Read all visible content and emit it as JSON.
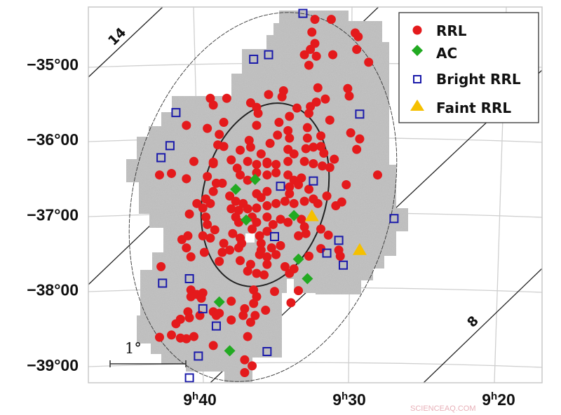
{
  "chart_data": {
    "type": "scatter",
    "title": "",
    "xlabel": "",
    "ylabel": "",
    "x_axis": {
      "quantity": "Right Ascension",
      "direction": "decreasing to the right",
      "ticks": [
        {
          "value": "9h40m",
          "label": "9h40"
        },
        {
          "value": "9h30m",
          "label": "9h30"
        },
        {
          "value": "9h20m",
          "label": "9h20"
        }
      ]
    },
    "y_axis": {
      "quantity": "Declination",
      "ticks": [
        {
          "value": -35,
          "label": "−35°00"
        },
        {
          "value": -36,
          "label": "−36°00"
        },
        {
          "value": -37,
          "label": "−37°00"
        },
        {
          "value": -38,
          "label": "−38°00"
        },
        {
          "value": -39,
          "label": "−39°00"
        }
      ]
    },
    "grid": true,
    "legend_position": "top-right",
    "colors": {
      "RRL": "#e41a1c",
      "AC": "#22aa22",
      "Bright RRL": "#1a1aaa",
      "Faint RRL": "#f5c000",
      "footprint": "#b9b9b9"
    },
    "contour_labels": [
      "14",
      "8"
    ],
    "scale_bar_label": "1°",
    "series": [
      {
        "name": "RRL",
        "marker": "circle",
        "points": [
          [
            "9h32.3m",
            -34.4
          ],
          [
            "9h31.2m",
            -34.4
          ],
          [
            "9h32.5m",
            -34.57
          ],
          [
            "9h29.6m",
            -34.58
          ],
          [
            "9h29.4m",
            -34.63
          ],
          [
            "9h32.3m",
            -34.72
          ],
          [
            "9h32.6m",
            -34.8
          ],
          [
            "9h33.0m",
            -34.87
          ],
          [
            "9h32.2m",
            -34.89
          ],
          [
            "9h32.7m",
            -35.01
          ],
          [
            "9h31.1m",
            -34.87
          ],
          [
            "9h29.5m",
            -34.8
          ],
          [
            "9h28.7m",
            -34.97
          ],
          [
            "9h32.1m",
            -35.31
          ],
          [
            "9h30.1m",
            -35.32
          ],
          [
            "9h30.0m",
            -35.42
          ],
          [
            "9h35.4m",
            -35.4
          ],
          [
            "9h34.4m",
            -35.35
          ],
          [
            "9h34.5m",
            -35.43
          ],
          [
            "9h39.3m",
            -35.45
          ],
          [
            "9h38.2m",
            -35.45
          ],
          [
            "9h39.1m",
            -35.54
          ],
          [
            "9h36.6m",
            -35.51
          ],
          [
            "9h36.2m",
            -35.57
          ],
          [
            "9h36.1m",
            -35.65
          ],
          [
            "9h33.5m",
            -35.58
          ],
          [
            "9h32.6m",
            -35.56
          ],
          [
            "9h32.2m",
            -35.5
          ],
          [
            "9h31.6m",
            -35.46
          ],
          [
            "9h32.7m",
            -35.65
          ],
          [
            "9h34.0m",
            -35.69
          ],
          [
            "9h34.7m",
            -35.77
          ],
          [
            "9h36.2m",
            -35.81
          ],
          [
            "9h31.3m",
            -35.74
          ],
          [
            "9h40.9m",
            -35.81
          ],
          [
            "9h39.5m",
            -35.85
          ],
          [
            "9h38.4m",
            -35.77
          ],
          [
            "9h38.7m",
            -35.93
          ],
          [
            "9h38.8m",
            -36.07
          ],
          [
            "9h38.4m",
            -36.09
          ],
          [
            "9h37.3m",
            -36.14
          ],
          [
            "9h36.7m",
            -36.01
          ],
          [
            "9h36.6m",
            -36.1
          ],
          [
            "9h35.3m",
            -36.05
          ],
          [
            "9h35.9m",
            -36.19
          ],
          [
            "9h34.8m",
            -35.94
          ],
          [
            "9h34.1m",
            -35.88
          ],
          [
            "9h34.0m",
            -35.98
          ],
          [
            "9h32.8m",
            -35.84
          ],
          [
            "9h31.9m",
            -35.95
          ],
          [
            "9h32.8m",
            -35.98
          ],
          [
            "9h29.9m",
            -35.91
          ],
          [
            "9h29.3m",
            -35.99
          ],
          [
            "9h29.5m",
            -36.13
          ],
          [
            "9h32.9m",
            -36.12
          ],
          [
            "9h32.4m",
            -36.1
          ],
          [
            "9h31.9m",
            -36.09
          ],
          [
            "9h31.7m",
            -36.18
          ],
          [
            "9h34.1m",
            -36.13
          ],
          [
            "9h33.7m",
            -36.19
          ],
          [
            "9h40.4m",
            -36.29
          ],
          [
            "9h39.1m",
            -36.3
          ],
          [
            "9h37.9m",
            -36.27
          ],
          [
            "9h36.8m",
            -36.29
          ],
          [
            "9h35.5m",
            -36.3
          ],
          [
            "9h34.1m",
            -36.29
          ],
          [
            "9h33.0m",
            -36.29
          ],
          [
            "9h31.0m",
            -36.26
          ],
          [
            "9h39.1m",
            -36.32
          ],
          [
            "9h42.7m",
            -36.47
          ],
          [
            "9h41.9m",
            -36.45
          ],
          [
            "9h40.9m",
            -36.52
          ],
          [
            "9h39.5m",
            -36.49
          ],
          [
            "9h37.5m",
            -36.38
          ],
          [
            "9h36.2m",
            -36.33
          ],
          [
            "9h35.5m",
            -36.32
          ],
          [
            "9h34.9m",
            -36.33
          ],
          [
            "9h32.4m",
            -36.32
          ],
          [
            "9h31.8m",
            -36.35
          ],
          [
            "9h31.3m",
            -36.37
          ],
          [
            "9h28.1m",
            -36.47
          ],
          [
            "9h37.3m",
            -36.47
          ],
          [
            "9h36.8m",
            -36.54
          ],
          [
            "9h36.2m",
            -36.44
          ],
          [
            "9h35.5m",
            -36.47
          ],
          [
            "9h34.9m",
            -36.44
          ],
          [
            "9h34.1m",
            -36.47
          ],
          [
            "9h33.7m",
            -36.54
          ],
          [
            "9h33.2m",
            -36.51
          ],
          [
            "9h33.4m",
            -36.6
          ],
          [
            "9h34.0m",
            -36.63
          ],
          [
            "9h32.7m",
            -36.66
          ],
          [
            "9h38.9m",
            -36.58
          ],
          [
            "9h38.5m",
            -36.58
          ],
          [
            "9h39.1m",
            -36.69
          ],
          [
            "9h39.6m",
            -36.79
          ],
          [
            "9h40.2m",
            -36.85
          ],
          [
            "9h39.8m",
            -36.91
          ],
          [
            "9h39.3m",
            -36.85
          ],
          [
            "9h38.0m",
            -36.75
          ],
          [
            "9h37.6m",
            -36.82
          ],
          [
            "9h37.1m",
            -36.85
          ],
          [
            "9h37.9m",
            -36.92
          ],
          [
            "9h37.4m",
            -36.94
          ],
          [
            "9h36.8m",
            -36.92
          ],
          [
            "9h36.2m",
            -36.91
          ],
          [
            "9h35.5m",
            -36.88
          ],
          [
            "9h34.9m",
            -36.85
          ],
          [
            "9h34.3m",
            -36.82
          ],
          [
            "9h33.7m",
            -36.85
          ],
          [
            "9h33.0m",
            -36.82
          ],
          [
            "9h32.4m",
            -36.79
          ],
          [
            "9h32.1m",
            -36.85
          ],
          [
            "9h31.5m",
            -36.75
          ],
          [
            "9h30.9m",
            -36.88
          ],
          [
            "9h30.5m",
            -36.83
          ],
          [
            "9h30.2m",
            -36.6
          ],
          [
            "9h36.2m",
            -36.72
          ],
          [
            "9h35.5m",
            -36.69
          ],
          [
            "9h35.9m",
            -36.77
          ],
          [
            "9h34.0m",
            -36.72
          ],
          [
            "9h40.7m",
            -36.99
          ],
          [
            "9h39.6m",
            -37.03
          ],
          [
            "9h39.5m",
            -37.13
          ],
          [
            "9h37.6m",
            -37.03
          ],
          [
            "9h37.4m",
            -37.1
          ],
          [
            "9h36.5m",
            -37.03
          ],
          [
            "9h36.2m",
            -37.1
          ],
          [
            "9h35.5m",
            -37.03
          ],
          [
            "9h35.1m",
            -37.13
          ],
          [
            "9h34.6m",
            -37.06
          ],
          [
            "9h34.1m",
            -37.1
          ],
          [
            "9h33.2m",
            -37.06
          ],
          [
            "9h33.0m",
            -37.16
          ],
          [
            "9h33.4m",
            -37.28
          ],
          [
            "9h32.9m",
            -37.25
          ],
          [
            "9h31.9m",
            -37.19
          ],
          [
            "9h31.4m",
            -37.27
          ],
          [
            "9h39.0m",
            -37.2
          ],
          [
            "9h37.8m",
            -37.25
          ],
          [
            "9h41.2m",
            -37.33
          ],
          [
            "9h40.8m",
            -37.28
          ],
          [
            "9h39.8m",
            -37.28
          ],
          [
            "9h39.3m",
            -37.31
          ],
          [
            "9h38.4m",
            -37.38
          ],
          [
            "9h37.3m",
            -37.31
          ],
          [
            "9h37.2m",
            -37.38
          ],
          [
            "9h37.4m",
            -37.44
          ],
          [
            "9h36.0m",
            -37.28
          ],
          [
            "9h35.9m",
            -37.38
          ],
          [
            "9h35.5m",
            -37.22
          ],
          [
            "9h36.5m",
            -37.19
          ],
          [
            "9h34.6m",
            -37.41
          ],
          [
            "9h35.2m",
            -37.44
          ],
          [
            "9h35.9m",
            -37.47
          ],
          [
            "9h36.0m",
            -37.53
          ],
          [
            "9h40.9m",
            -37.44
          ],
          [
            "9h40.6m",
            -37.56
          ],
          [
            "9h39.7m",
            -37.5
          ],
          [
            "9h38.5m",
            -37.5
          ],
          [
            "9h38.0m",
            -37.47
          ],
          [
            "9h38.7m",
            -37.62
          ],
          [
            "9h37.3m",
            -37.61
          ],
          [
            "9h36.6m",
            -37.66
          ],
          [
            "9h36.8m",
            -37.75
          ],
          [
            "9h35.5m",
            -37.56
          ],
          [
            "9h35.5m",
            -37.66
          ],
          [
            "9h34.3m",
            -37.69
          ],
          [
            "9h34.0m",
            -37.78
          ],
          [
            "9h33.7m",
            -37.72
          ],
          [
            "9h32.7m",
            -37.55
          ],
          [
            "9h31.9m",
            -37.45
          ],
          [
            "9h30.7m",
            -37.47
          ],
          [
            "9h30.6m",
            -37.55
          ],
          [
            "9h42.6m",
            -37.69
          ],
          [
            "9h36.2m",
            -37.78
          ],
          [
            "9h35.7m",
            -37.8
          ],
          [
            "9h34.9m",
            -37.53
          ],
          [
            "9h40.6m",
            -38.0
          ],
          [
            "9h40.2m",
            -38.06
          ],
          [
            "9h39.8m",
            -38.04
          ],
          [
            "9h40.6m",
            -38.09
          ],
          [
            "9h39.9m",
            -38.11
          ],
          [
            "9h36.4m",
            -38.0
          ],
          [
            "9h36.2m",
            -38.09
          ],
          [
            "9h36.4m",
            -38.18
          ],
          [
            "9h35.0m",
            -38.02
          ],
          [
            "9h33.4m",
            -38.01
          ],
          [
            "9h33.9m",
            -38.17
          ],
          [
            "9h37.9m",
            -38.15
          ],
          [
            "9h37.0m",
            -38.25
          ],
          [
            "9h37.1m",
            -38.34
          ],
          [
            "9h36.3m",
            -38.34
          ],
          [
            "9h36.6m",
            -38.43
          ],
          [
            "9h35.6m",
            -38.27
          ],
          [
            "9h39.1m",
            -38.29
          ],
          [
            "9h38.9m",
            -38.34
          ],
          [
            "9h38.7m",
            -38.31
          ],
          [
            "9h37.9m",
            -38.4
          ],
          [
            "9h40.8m",
            -38.29
          ],
          [
            "9h40.7m",
            -38.37
          ],
          [
            "9h40.0m",
            -38.34
          ],
          [
            "9h41.3m",
            -38.39
          ],
          [
            "9h41.6m",
            -38.45
          ],
          [
            "9h42.7m",
            -38.63
          ],
          [
            "9h41.9m",
            -38.6
          ],
          [
            "9h41.3m",
            -38.64
          ],
          [
            "9h40.9m",
            -38.65
          ],
          [
            "9h40.4m",
            -38.62
          ],
          [
            "9h36.8m",
            -38.62
          ],
          [
            "9h39.1m",
            -38.74
          ],
          [
            "9h37.0m",
            -38.93
          ],
          [
            "9h36.5m",
            -39.01
          ],
          [
            "9h37.0m",
            -39.1
          ]
        ]
      },
      {
        "name": "AC",
        "marker": "diamond",
        "points": [
          [
            "9h37.6m",
            -36.66
          ],
          [
            "9h36.3m",
            -36.53
          ],
          [
            "9h36.9m",
            -37.07
          ],
          [
            "9h33.7m",
            -37.01
          ],
          [
            "9h33.4m",
            -37.59
          ],
          [
            "9h32.8m",
            -37.85
          ],
          [
            "9h38.7m",
            -38.16
          ],
          [
            "9h38.0m",
            -38.81
          ]
        ]
      },
      {
        "name": "Bright RRL",
        "marker": "open-square",
        "points": [
          [
            "9h33.1m",
            -34.32
          ],
          [
            "9h36.4m",
            -34.93
          ],
          [
            "9h35.4m",
            -34.87
          ],
          [
            "9h41.6m",
            -35.64
          ],
          [
            "9h42.0m",
            -36.08
          ],
          [
            "9h42.6m",
            -36.24
          ],
          [
            "9h29.3m",
            -35.66
          ],
          [
            "9h34.6m",
            -36.62
          ],
          [
            "9h32.4m",
            -36.55
          ],
          [
            "9h35.0m",
            -37.29
          ],
          [
            "9h30.7m",
            -37.34
          ],
          [
            "9h31.5m",
            -37.51
          ],
          [
            "9h30.4m",
            -37.67
          ],
          [
            "9h27.0m",
            -37.05
          ],
          [
            "9h42.5m",
            -37.91
          ],
          [
            "9h40.7m",
            -37.85
          ],
          [
            "9h39.8m",
            -38.25
          ],
          [
            "9h38.9m",
            -38.48
          ],
          [
            "9h40.1m",
            -38.88
          ],
          [
            "9h35.5m",
            -38.82
          ],
          [
            "9h40.7m",
            -39.17
          ]
        ]
      },
      {
        "name": "Faint RRL",
        "marker": "triangle",
        "points": [
          [
            "9h32.5m",
            -37.01
          ],
          [
            "9h29.3m",
            -37.46
          ]
        ]
      }
    ]
  },
  "legend": {
    "items": [
      {
        "label": "RRL",
        "marker": "circle",
        "color": "#e41a1c"
      },
      {
        "label": "AC",
        "marker": "diamond",
        "color": "#22aa22"
      },
      {
        "label": "Bright RRL",
        "marker": "open-square",
        "color": "#1a1aaa"
      },
      {
        "label": "Faint RRL",
        "marker": "triangle",
        "color": "#f5c000"
      }
    ]
  },
  "watermark": "SCIENCEAQ.COM"
}
